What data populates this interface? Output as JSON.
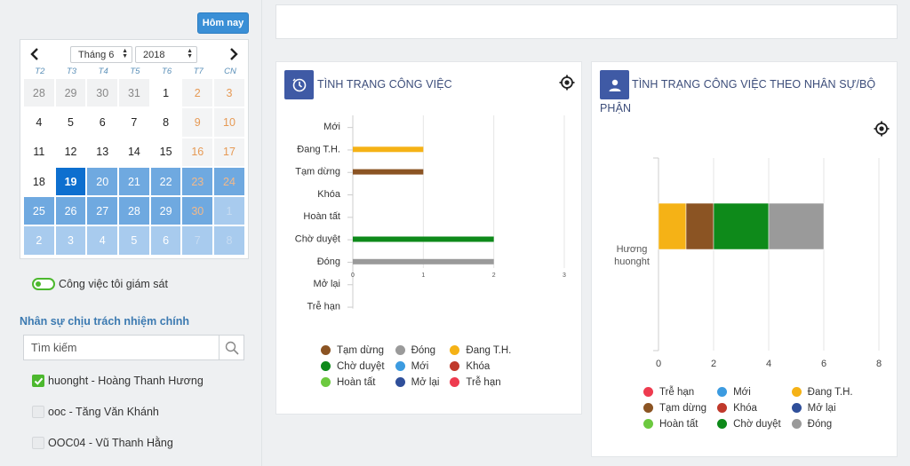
{
  "sidebar": {
    "today_label": "Hôm nay",
    "calendar": {
      "month_label": "Tháng 6",
      "year_label": "2018",
      "weekdays": [
        "T2",
        "T3",
        "T4",
        "T5",
        "T6",
        "T7",
        "CN"
      ],
      "selected_day": "19",
      "days": [
        [
          "28",
          "29",
          "30",
          "31",
          "1",
          "2",
          "3"
        ],
        [
          "4",
          "5",
          "6",
          "7",
          "8",
          "9",
          "10"
        ],
        [
          "11",
          "12",
          "13",
          "14",
          "15",
          "16",
          "17"
        ],
        [
          "18",
          "19",
          "20",
          "21",
          "22",
          "23",
          "24"
        ],
        [
          "25",
          "26",
          "27",
          "28",
          "29",
          "30",
          "1"
        ],
        [
          "2",
          "3",
          "4",
          "5",
          "6",
          "7",
          "8"
        ]
      ]
    },
    "toggle_label": "Công việc tôi giám sát",
    "section_title": "Nhân sự chịu trách nhiệm chính",
    "search_placeholder": "Tìm kiếm",
    "people": [
      {
        "label": "huonght - Hoàng Thanh Hương",
        "checked": true
      },
      {
        "label": "ooc - Tăng Văn Khánh",
        "checked": false
      },
      {
        "label": "OOC04 - Vũ Thanh Hằng",
        "checked": false
      }
    ]
  },
  "colors": {
    "Mới": "#3c9be0",
    "Đang T.H.": "#f5b216",
    "Tạm dừng": "#8b5423",
    "Khóa": "#c0392b",
    "Hoàn tất": "#6cc93f",
    "Chờ duyệt": "#0e8a1a",
    "Đóng": "#9a9a9a",
    "Mở lại": "#2f4f9a",
    "Trễ hạn": "#ee3b4f"
  },
  "panel_left": {
    "title": "TÌNH TRẠNG CÔNG VIỆC",
    "icon": "clock-icon",
    "chart_data": {
      "type": "bar",
      "orientation": "horizontal",
      "categories": [
        "Mới",
        "Đang T.H.",
        "Tạm dừng",
        "Khóa",
        "Hoàn tất",
        "Chờ duyệt",
        "Đóng",
        "Mở lại",
        "Trễ hạn"
      ],
      "values": [
        0,
        1,
        1,
        0,
        0,
        2,
        2,
        0,
        0
      ],
      "xlim": [
        0,
        3
      ],
      "xticks": [
        "0",
        "1",
        "2",
        "3"
      ],
      "grid": true,
      "legend_position": "bottom"
    },
    "legend": [
      "Tạm dừng",
      "Đóng",
      "Đang T.H.",
      "Chờ duyệt",
      "Mới",
      "Khóa",
      "Hoàn tất",
      "Mở lại",
      "Trễ hạn"
    ]
  },
  "panel_right": {
    "title_line1": "TÌNH TRẠNG CÔNG VIỆC THEO NHÂN SỰ/BỘ",
    "title_line2": "PHẬN",
    "icon": "user-icon",
    "chart_data": {
      "type": "bar",
      "orientation": "horizontal",
      "stacked": true,
      "categories": [
        "Hương huonght"
      ],
      "category_lines": [
        "Hương",
        "huonght"
      ],
      "series": [
        {
          "name": "Đang T.H.",
          "values": [
            1
          ]
        },
        {
          "name": "Tạm dừng",
          "values": [
            1
          ]
        },
        {
          "name": "Chờ duyệt",
          "values": [
            2
          ]
        },
        {
          "name": "Đóng",
          "values": [
            2
          ]
        }
      ],
      "xlim": [
        0,
        8
      ],
      "xticks": [
        "0",
        "2",
        "4",
        "6",
        "8"
      ],
      "grid": true,
      "legend_position": "bottom"
    },
    "legend": [
      "Trễ hạn",
      "Mới",
      "Đang T.H.",
      "Tạm dừng",
      "Khóa",
      "Mở lại",
      "Hoàn tất",
      "Chờ duyệt",
      "Đóng"
    ]
  }
}
